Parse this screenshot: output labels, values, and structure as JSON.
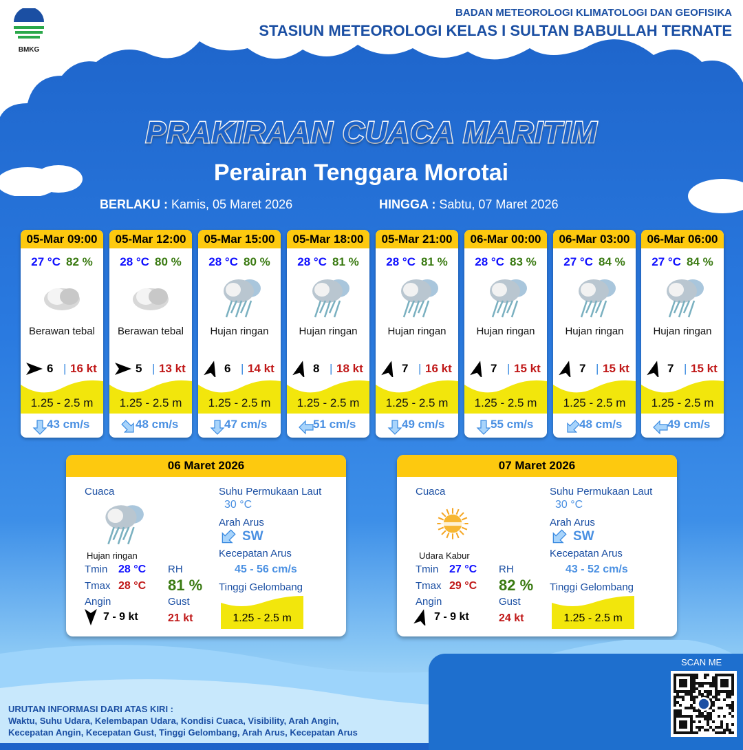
{
  "header": {
    "logo_text": "BMKG",
    "org": "BADAN METEOROLOGI KLIMATOLOGI DAN GEOFISIKA",
    "station": "STASIUN METEOROLOGI KELAS I SULTAN BABULLAH TERNATE"
  },
  "title": "PRAKIRAAN CUACA MARITIM",
  "subtitle": "Perairan Tenggara Morotai",
  "validity": {
    "from_label": "BERLAKU :",
    "from": "Kamis, 05 Maret 2026",
    "to_label": "HINGGA :",
    "to": "Sabtu, 07 Maret 2026"
  },
  "forecasts": [
    {
      "time": "05-Mar 09:00",
      "temp": "27 °C",
      "rh": "82 %",
      "icon": "cloudy-icon",
      "cond": "Berawan tebal",
      "wind_dir_deg": 0,
      "wind": "6",
      "sep": "|",
      "gust": "16 kt",
      "wave": "1.25 - 2.5 m",
      "cur_dir_deg": 90,
      "cur": "43 cm/s"
    },
    {
      "time": "05-Mar 12:00",
      "temp": "28 °C",
      "rh": "80 %",
      "icon": "cloudy-icon",
      "cond": "Berawan tebal",
      "wind_dir_deg": 0,
      "wind": "5",
      "sep": "|",
      "gust": "13 kt",
      "wave": "1.25 - 2.5 m",
      "cur_dir_deg": 45,
      "cur": "48 cm/s"
    },
    {
      "time": "05-Mar 15:00",
      "temp": "28 °C",
      "rh": "80 %",
      "icon": "light-rain-icon",
      "cond": "Hujan ringan",
      "wind_dir_deg": -75,
      "wind": "6",
      "sep": "|",
      "gust": "14 kt",
      "wave": "1.25 - 2.5 m",
      "cur_dir_deg": 90,
      "cur": "47 cm/s"
    },
    {
      "time": "05-Mar 18:00",
      "temp": "28 °C",
      "rh": "81 %",
      "icon": "light-rain-icon",
      "cond": "Hujan ringan",
      "wind_dir_deg": -75,
      "wind": "8",
      "sep": "|",
      "gust": "18 kt",
      "wave": "1.25 - 2.5 m",
      "cur_dir_deg": 180,
      "cur": "51 cm/s"
    },
    {
      "time": "05-Mar 21:00",
      "temp": "28 °C",
      "rh": "81 %",
      "icon": "light-rain-icon",
      "cond": "Hujan ringan",
      "wind_dir_deg": -75,
      "wind": "7",
      "sep": "|",
      "gust": "16 kt",
      "wave": "1.25 - 2.5 m",
      "cur_dir_deg": 90,
      "cur": "49 cm/s"
    },
    {
      "time": "06-Mar 00:00",
      "temp": "28 °C",
      "rh": "83 %",
      "icon": "light-rain-icon",
      "cond": "Hujan ringan",
      "wind_dir_deg": -75,
      "wind": "7",
      "sep": "|",
      "gust": "15 kt",
      "wave": "1.25 - 2.5 m",
      "cur_dir_deg": 90,
      "cur": "55 cm/s"
    },
    {
      "time": "06-Mar 03:00",
      "temp": "27 °C",
      "rh": "84 %",
      "icon": "light-rain-icon",
      "cond": "Hujan ringan",
      "wind_dir_deg": -75,
      "wind": "7",
      "sep": "|",
      "gust": "15 kt",
      "wave": "1.25 - 2.5 m",
      "cur_dir_deg": 135,
      "cur": "48 cm/s"
    },
    {
      "time": "06-Mar 06:00",
      "temp": "27 °C",
      "rh": "84 %",
      "icon": "light-rain-icon",
      "cond": "Hujan ringan",
      "wind_dir_deg": -75,
      "wind": "7",
      "sep": "|",
      "gust": "15 kt",
      "wave": "1.25 - 2.5 m",
      "cur_dir_deg": 180,
      "cur": "49 cm/s"
    }
  ],
  "labels": {
    "weather": "Cuaca",
    "sst": "Suhu Permukaan Laut",
    "cur_dir": "Arah Arus",
    "cur_speed": "Kecepatan Arus",
    "wave": "Tinggi Gelombang",
    "tmin": "Tmin",
    "tmax": "Tmax",
    "rh": "RH",
    "wind": "Angin",
    "gust": "Gust"
  },
  "daily": [
    {
      "date": "06 Maret 2026",
      "icon": "light-rain-icon",
      "cond": "Hujan ringan",
      "tmin": "28 °C",
      "tmax": "28 °C",
      "rh": "81 %",
      "wind_dir_deg": 90,
      "wind": "7 - 9 kt",
      "gust": "21 kt",
      "sst": "30 °C",
      "cur_dir_deg": 135,
      "cur_dir": "SW",
      "cur_speed": "45 - 56 cm/s",
      "wave": "1.25 - 2.5 m"
    },
    {
      "date": "07 Maret 2026",
      "icon": "haze-icon",
      "cond": "Udara Kabur",
      "tmin": "27 °C",
      "tmax": "29 °C",
      "rh": "82 %",
      "wind_dir_deg": -75,
      "wind": "7 - 9 kt",
      "gust": "24 kt",
      "sst": "30 °C",
      "cur_dir_deg": 135,
      "cur_dir": "SW",
      "cur_speed": "43 - 52 cm/s",
      "wave": "1.25 - 2.5 m"
    }
  ],
  "footer": {
    "heading": "URUTAN INFORMASI DARI ATAS KIRI :",
    "line1": "Waktu, Suhu Udara, Kelembapan Udara, Kondisi Cuaca, Visibility, Arah Angin,",
    "line2": "Kecepatan Angin, Kecepatan Gust, Tinggi Gelombang, Arah Arus, Kecepatan Arus",
    "scan": "SCAN ME"
  },
  "colors": {
    "header_yellow": "#fdc90f",
    "temp": "#1010ff",
    "rh": "#3a7a12",
    "gust": "#c01818",
    "current": "#4a90e2",
    "wave": "#f2e60c"
  }
}
